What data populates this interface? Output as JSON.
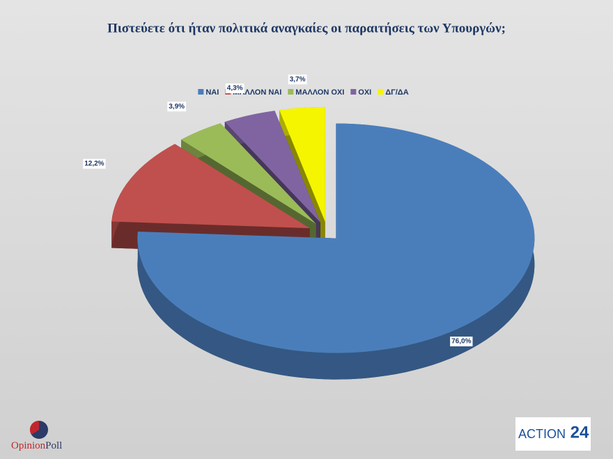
{
  "chart_data": {
    "type": "pie3d",
    "title": "Πιστεύετε ότι ήταν πολιτικά αναγκαίες οι παραιτήσεις των Υπουργών;",
    "categories": [
      "ΝΑΙ",
      "ΜΑΛΛΟΝ ΝΑΙ",
      "ΜΑΛΛΟΝ ΟΧΙ",
      "ΟΧΙ",
      "ΔΓ/ΔΑ"
    ],
    "values": [
      76.0,
      12.2,
      3.9,
      4.3,
      3.7
    ],
    "value_labels": [
      "76,0%",
      "12,2%",
      "3,9%",
      "4,3%",
      "3,7%"
    ],
    "colors": [
      "#4a7ebb",
      "#c0504d",
      "#9bbb59",
      "#8064a2",
      "#f5f500"
    ],
    "legend": "top"
  },
  "branding": {
    "left": [
      "Opinion",
      "Poll"
    ],
    "right": [
      "ACTION",
      "24"
    ]
  }
}
